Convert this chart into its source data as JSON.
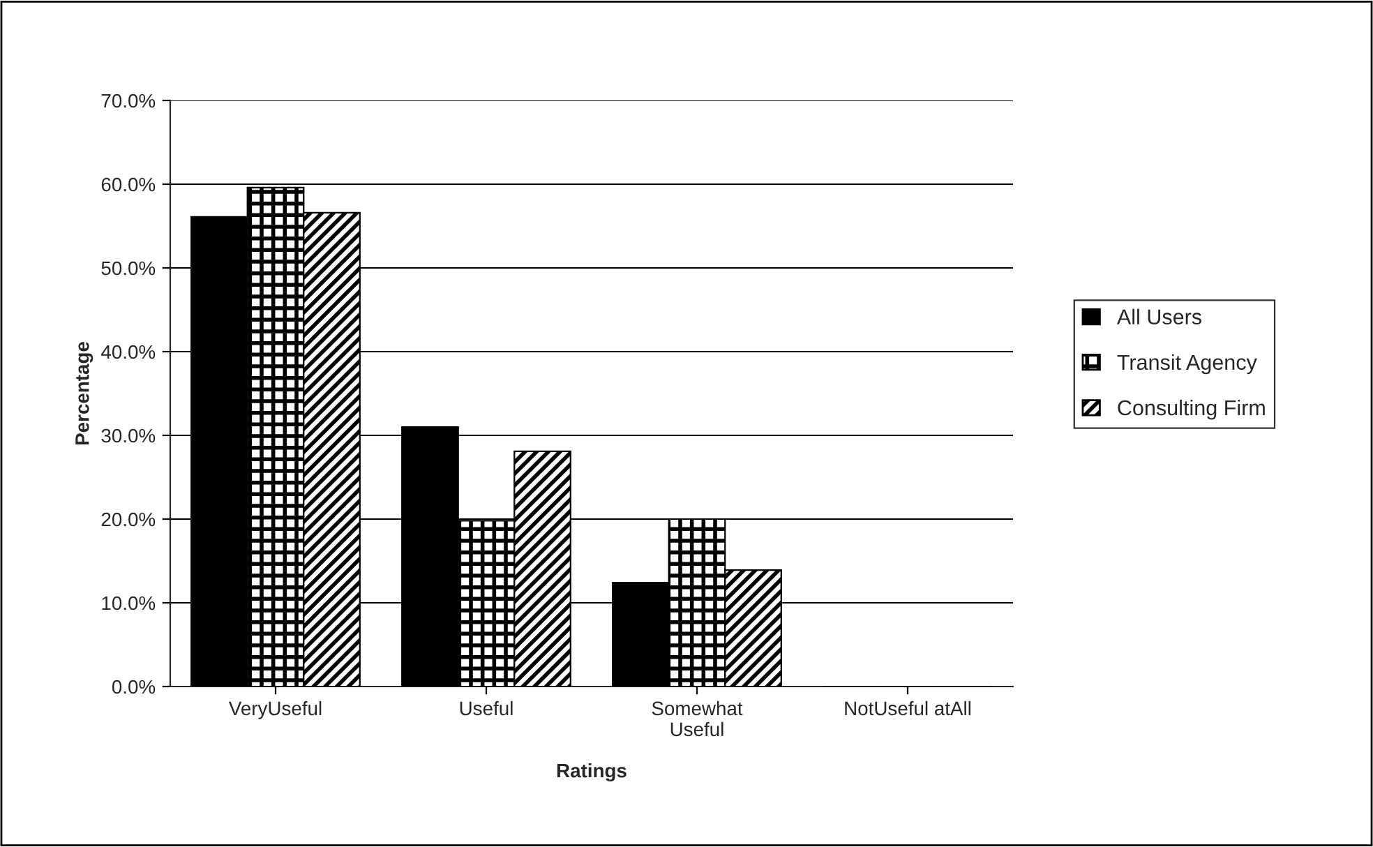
{
  "chart_data": {
    "type": "bar",
    "xlabel": "Ratings",
    "ylabel": "Percentage",
    "categories": [
      "VeryUseful",
      "Useful",
      "Somewhat\nUseful",
      "NotUseful atAll"
    ],
    "series": [
      {
        "name": "All Users",
        "color": "#000000",
        "values": [
          56.1,
          31.0,
          12.4,
          0
        ]
      },
      {
        "name": "Transit Agency",
        "color": "#000000",
        "values": [
          59.6,
          19.8,
          20.0,
          0
        ]
      },
      {
        "name": "Consulting Firm",
        "color": "#000000",
        "values": [
          56.6,
          28.1,
          13.9,
          0
        ]
      }
    ],
    "ylim": [
      0,
      70
    ],
    "yticks": [
      {
        "value": 0,
        "label": "0.0%"
      },
      {
        "value": 10,
        "label": "10.0%"
      },
      {
        "value": 20,
        "label": "20.0%"
      },
      {
        "value": 30,
        "label": "30.0%"
      },
      {
        "value": 40,
        "label": "40.0%"
      },
      {
        "value": 50,
        "label": "50.0%"
      },
      {
        "value": 60,
        "label": "60.0%"
      },
      {
        "value": 70,
        "label": "70.0%"
      }
    ],
    "grid": "y",
    "legend": "right"
  }
}
